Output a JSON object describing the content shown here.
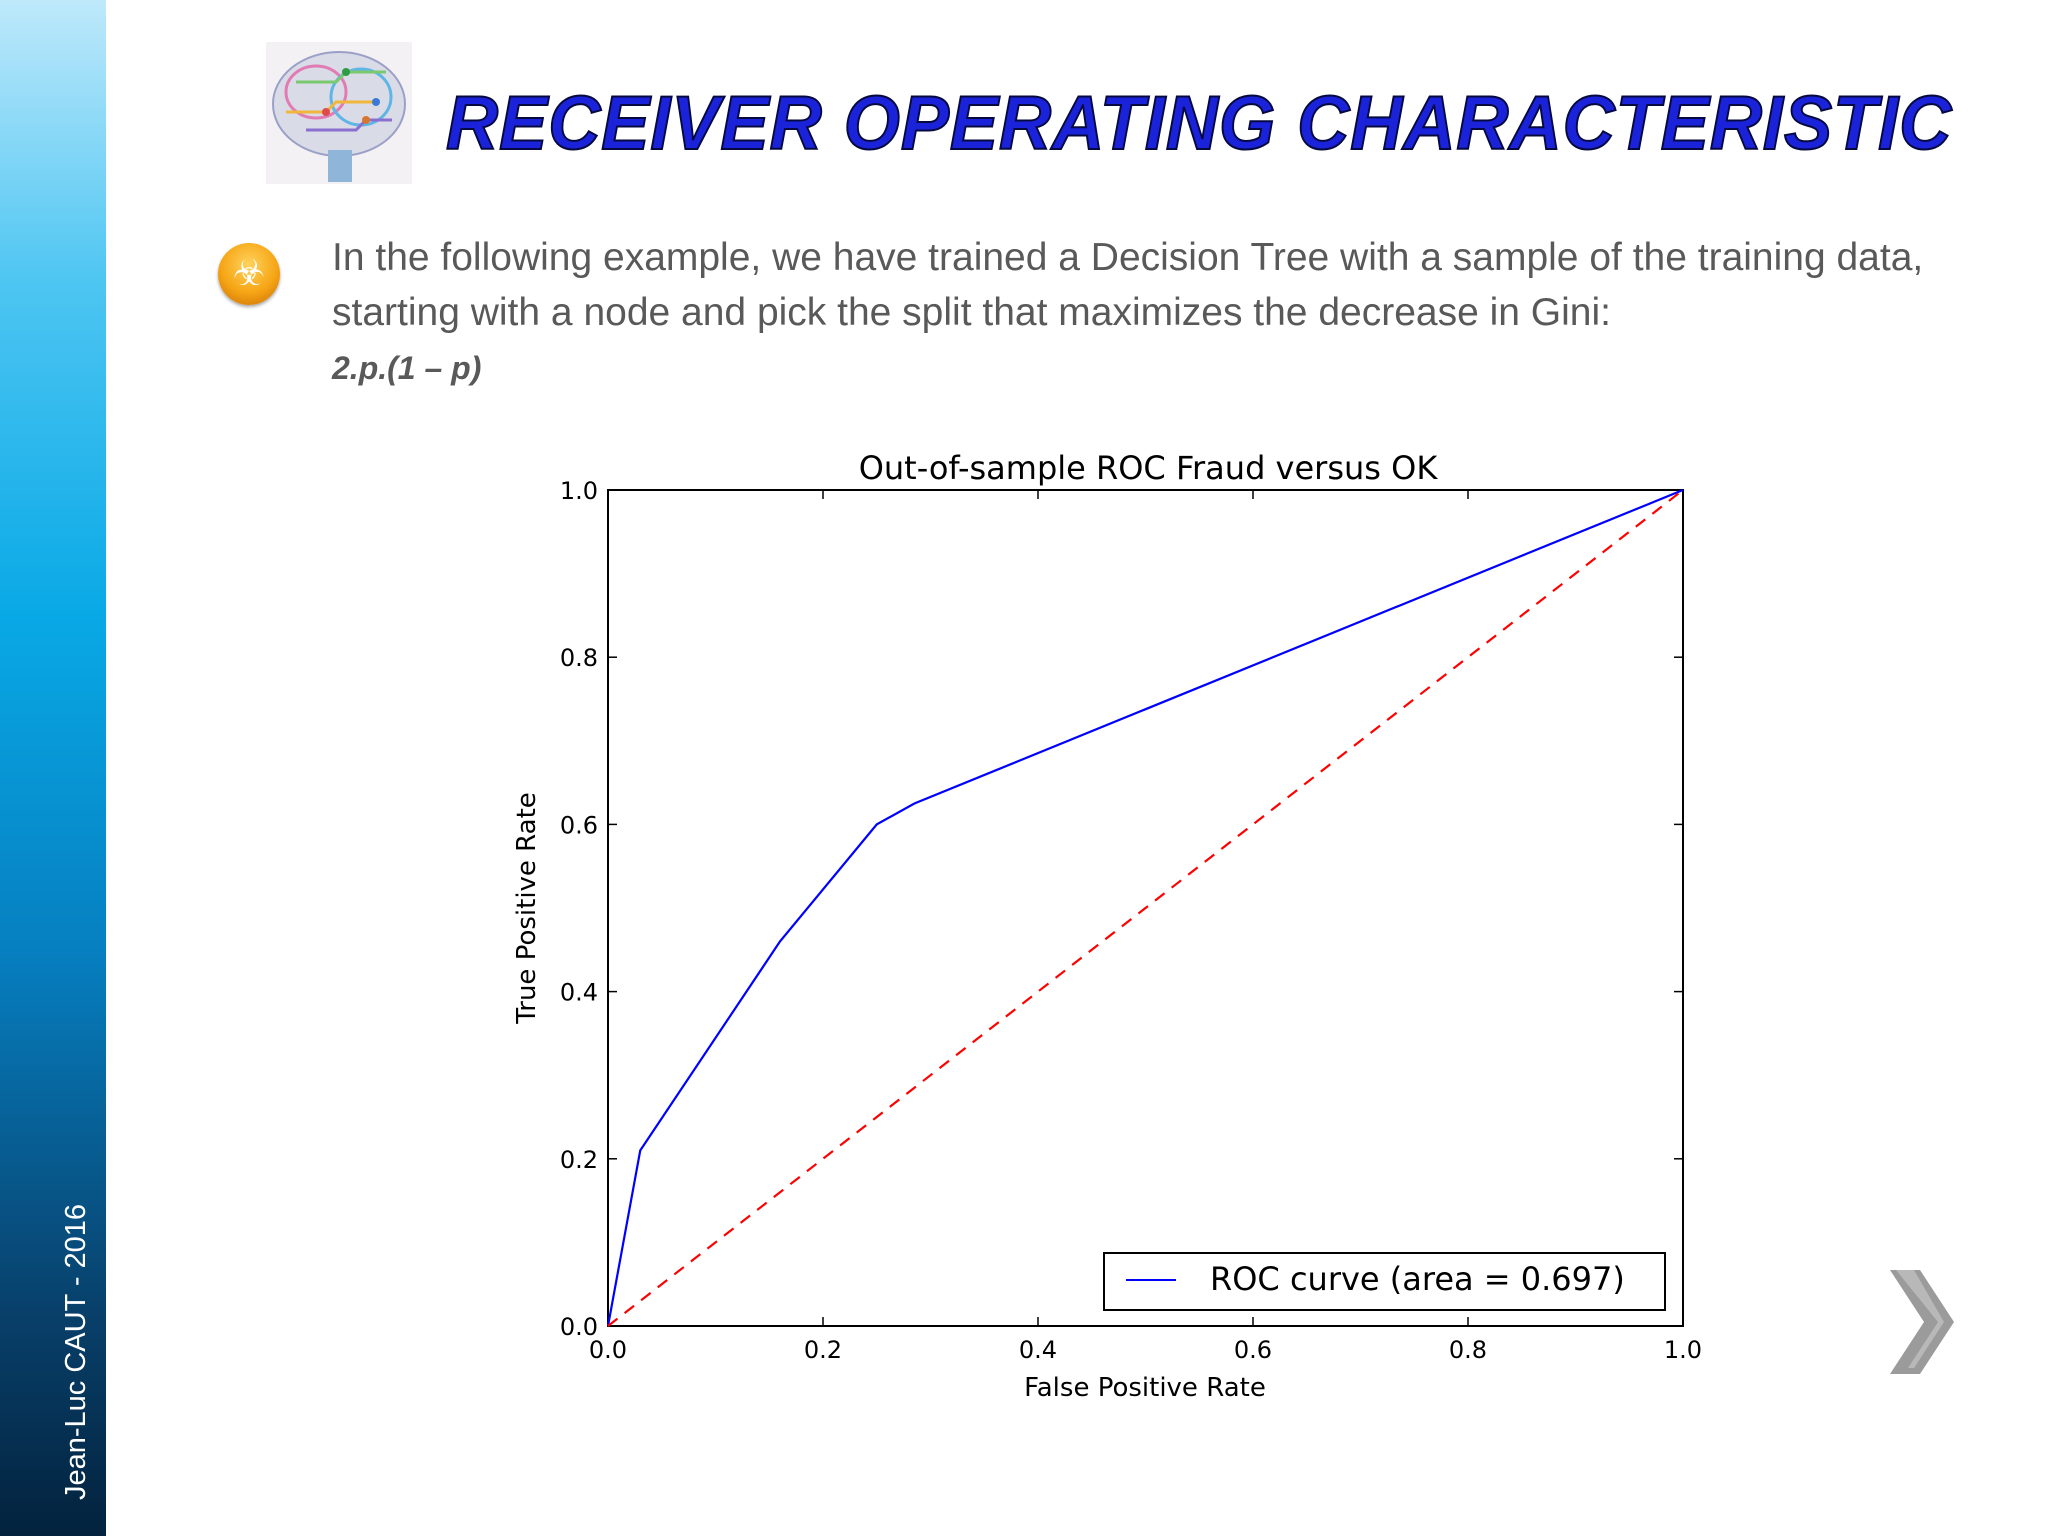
{
  "author": "Jean-Luc CAUT - 2016",
  "title": "Receiver Operating Characteristic",
  "body": {
    "bullet_icon": "biohazard-icon",
    "paragraph": "In the following example, we have trained a Decision Tree with a sample of the training data, starting with a node and pick the split that maximizes the decrease in Gini:",
    "formula": "2.p.(1 – p)"
  },
  "chart_data": {
    "type": "line",
    "title": "Out-of-sample ROC  Fraud versus OK",
    "xlabel": "False Positive Rate",
    "ylabel": "True Positive Rate",
    "xlim": [
      0,
      1
    ],
    "ylim": [
      0,
      1
    ],
    "xticks": [
      "0.0",
      "0.2",
      "0.4",
      "0.6",
      "0.8",
      "1.0"
    ],
    "yticks": [
      "0.0",
      "0.2",
      "0.4",
      "0.6",
      "0.8",
      "1.0"
    ],
    "grid": false,
    "legend_position": "lower-right",
    "series": [
      {
        "name": "ROC curve (area = 0.697)",
        "color": "#0000ff",
        "style": "solid",
        "x": [
          0.0,
          0.03,
          0.16,
          0.25,
          0.285,
          1.0
        ],
        "y": [
          0.0,
          0.21,
          0.46,
          0.6,
          0.625,
          1.0
        ]
      },
      {
        "color": "#ff0000",
        "style": "dashed",
        "x": [
          0.0,
          1.0
        ],
        "y": [
          0.0,
          1.0
        ]
      }
    ]
  },
  "navigation": {
    "next_icon": "chevron-right-icon"
  },
  "logo_icon": "brain-circuit-icon"
}
